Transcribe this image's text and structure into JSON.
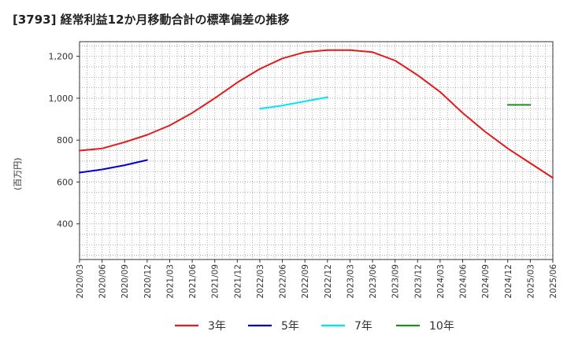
{
  "chart_data": {
    "type": "line",
    "title": "[3793]  経常利益12か月移動合計の標準偏差の推移",
    "ylabel": "(百万円)",
    "xlabel": "",
    "ylim": [
      230,
      1270
    ],
    "yticks": [
      400,
      600,
      800,
      1000,
      1200
    ],
    "ytick_labels": [
      "400",
      "600",
      "800",
      "1,000",
      "1,200"
    ],
    "xlim": [
      "2020/03",
      "2025/06"
    ],
    "xticks": [
      "2020/03",
      "2020/06",
      "2020/09",
      "2020/12",
      "2021/03",
      "2021/06",
      "2021/09",
      "2021/12",
      "2022/03",
      "2022/06",
      "2022/09",
      "2022/12",
      "2023/03",
      "2023/06",
      "2023/09",
      "2023/12",
      "2024/03",
      "2024/06",
      "2024/09",
      "2024/12",
      "2025/03",
      "2025/06"
    ],
    "grid": true,
    "legend_position": "bottom",
    "series": [
      {
        "name": "3年",
        "color": "#e31a1c",
        "points": [
          [
            "2020/03",
            750
          ],
          [
            "2020/06",
            760
          ],
          [
            "2020/09",
            790
          ],
          [
            "2020/12",
            825
          ],
          [
            "2021/03",
            870
          ],
          [
            "2021/06",
            930
          ],
          [
            "2021/09",
            1000
          ],
          [
            "2021/12",
            1075
          ],
          [
            "2022/03",
            1140
          ],
          [
            "2022/06",
            1190
          ],
          [
            "2022/09",
            1220
          ],
          [
            "2022/12",
            1230
          ],
          [
            "2023/03",
            1230
          ],
          [
            "2023/06",
            1220
          ],
          [
            "2023/09",
            1180
          ],
          [
            "2023/12",
            1110
          ],
          [
            "2024/03",
            1030
          ],
          [
            "2024/06",
            930
          ],
          [
            "2024/09",
            840
          ],
          [
            "2024/12",
            760
          ],
          [
            "2025/03",
            690
          ],
          [
            "2025/06",
            620
          ]
        ]
      },
      {
        "name": "5年",
        "color": "#0000cc",
        "points": [
          [
            "2020/03",
            645
          ],
          [
            "2020/06",
            660
          ],
          [
            "2020/09",
            680
          ],
          [
            "2020/12",
            705
          ]
        ]
      },
      {
        "name": "7年",
        "color": "#00e5ee",
        "points": [
          [
            "2022/03",
            950
          ],
          [
            "2022/06",
            965
          ],
          [
            "2022/09",
            985
          ],
          [
            "2022/12",
            1005
          ]
        ]
      },
      {
        "name": "10年",
        "color": "#228b22",
        "points": [
          [
            "2024/12",
            968
          ],
          [
            "2025/03",
            968
          ]
        ]
      }
    ]
  }
}
